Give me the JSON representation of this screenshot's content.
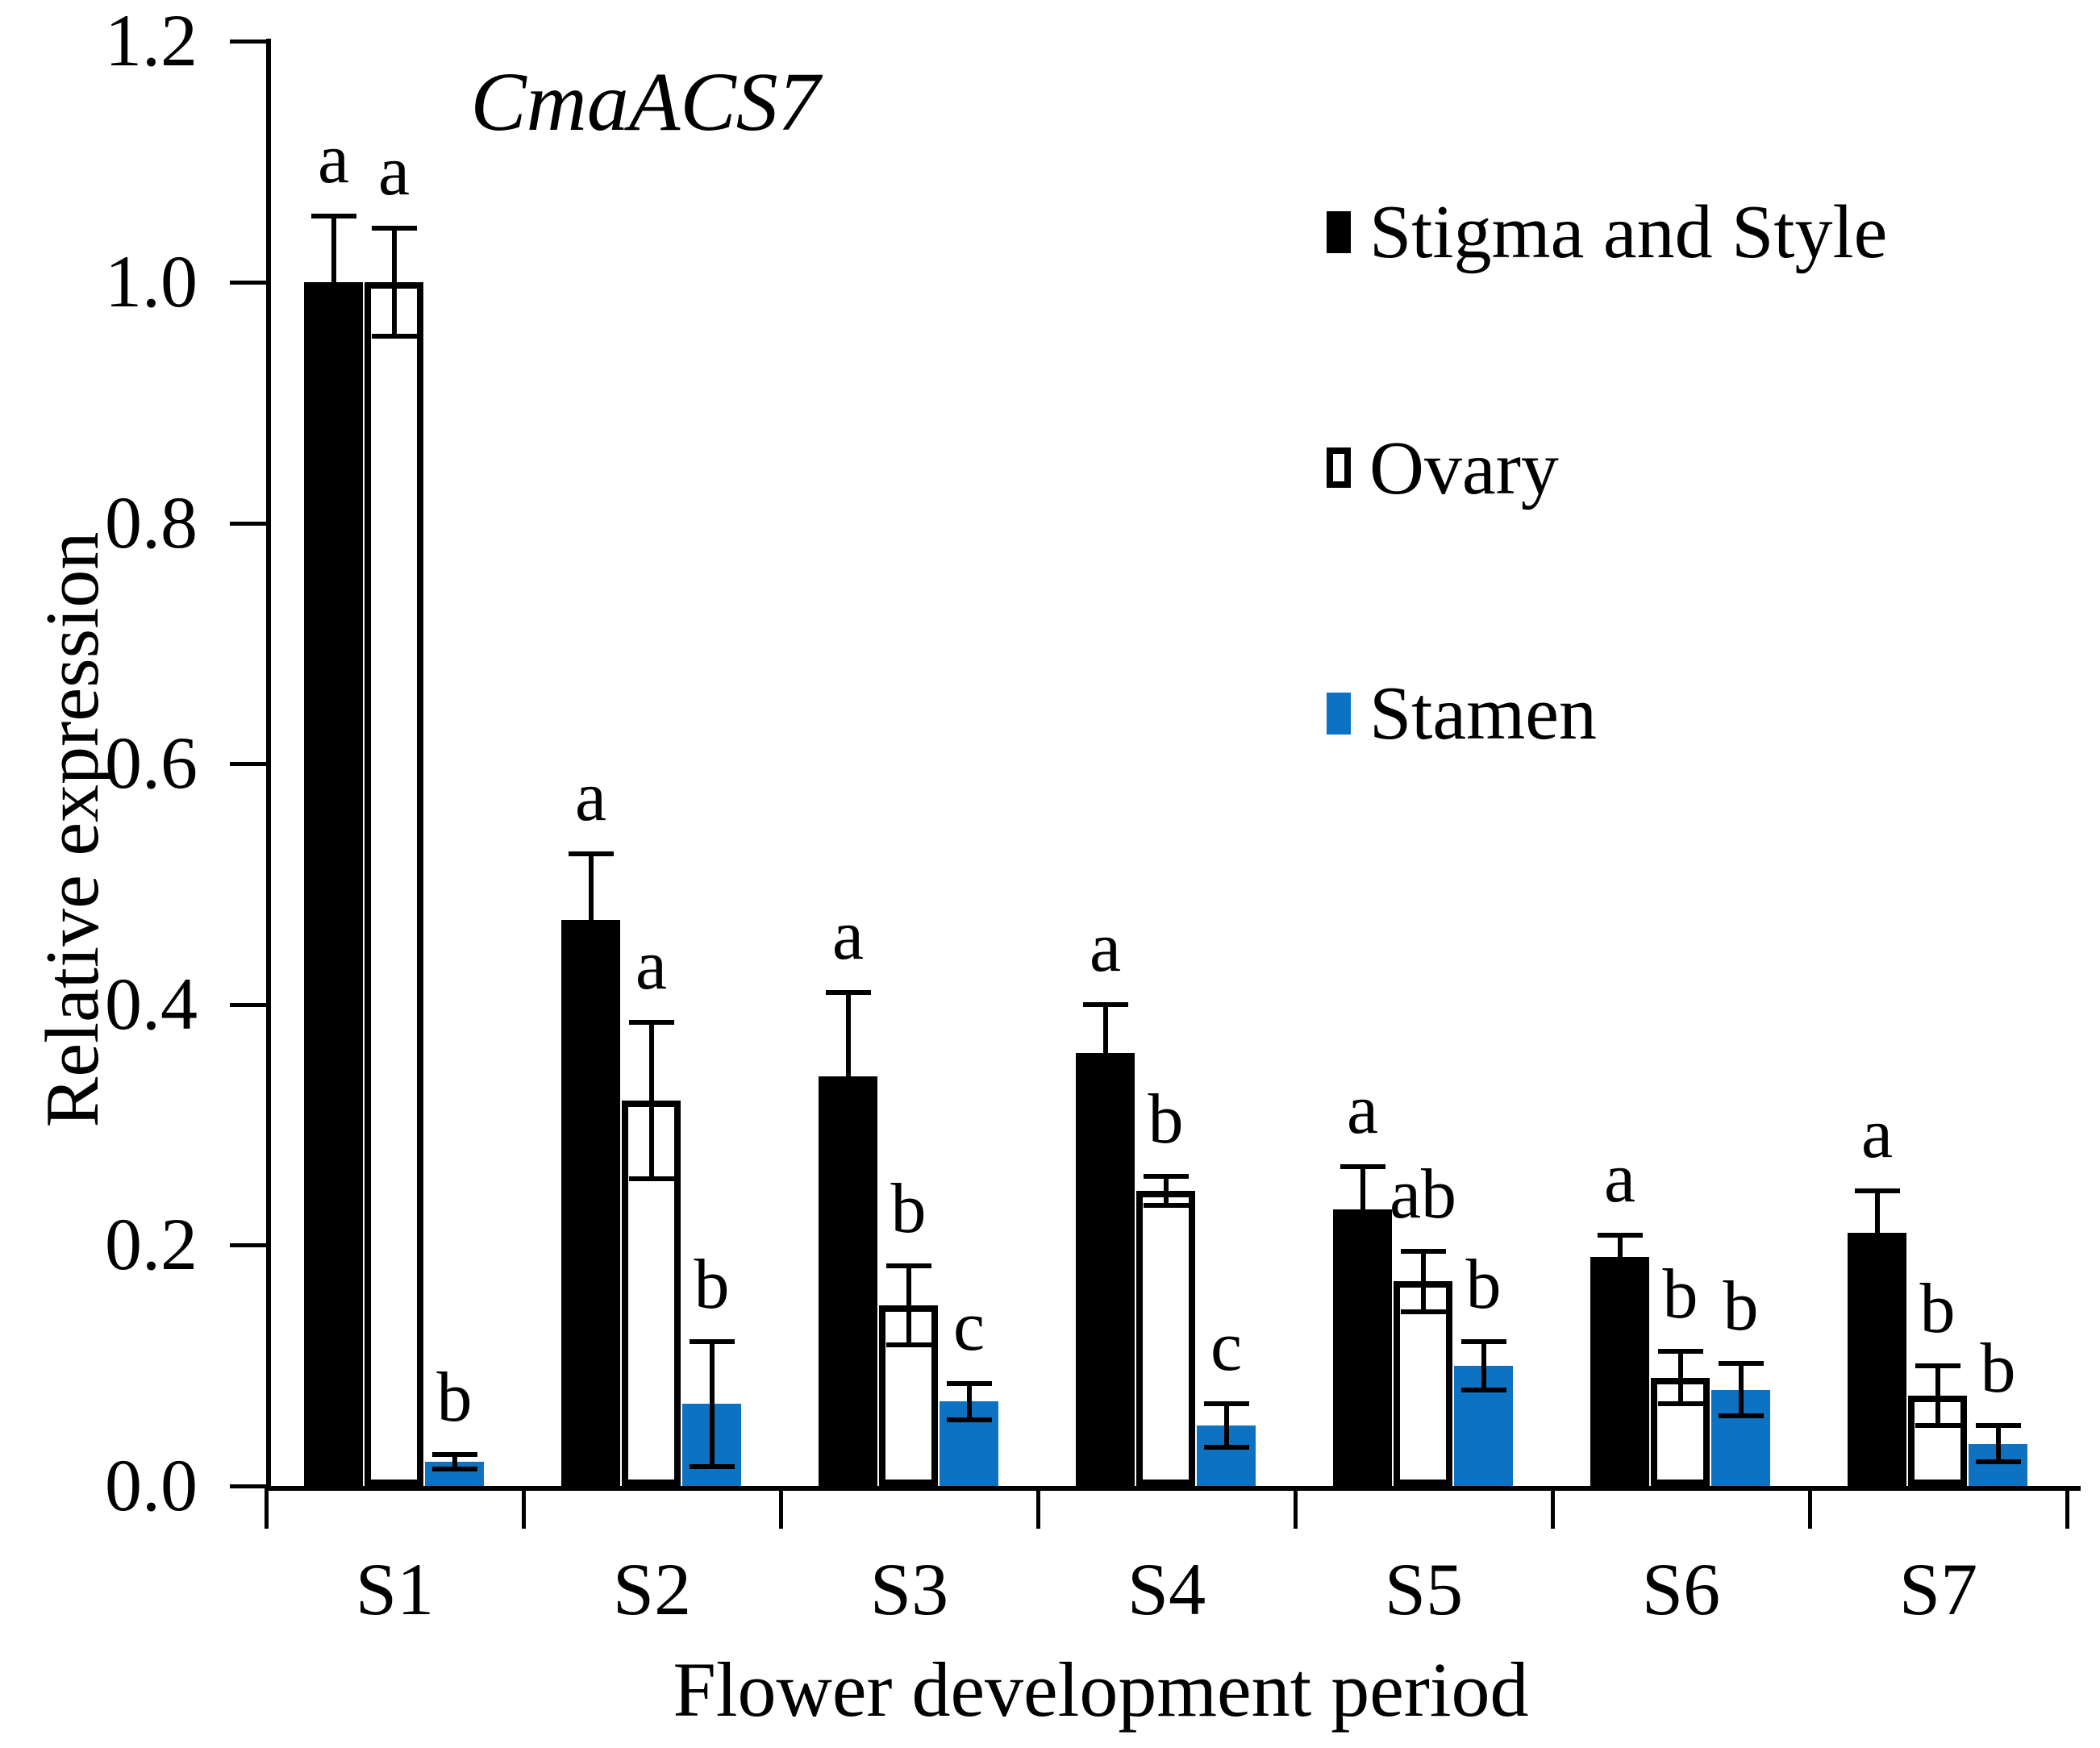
{
  "title": "CmaACS7",
  "axes": {
    "y_label": "Relative expression",
    "x_label": "Flower development period",
    "y_ticks": [
      "1.2",
      "1.0",
      "0.8",
      "0.6",
      "0.4",
      "0.2",
      "0.0"
    ],
    "categories": [
      "S1",
      "S2",
      "S3",
      "S4",
      "S5",
      "S6",
      "S7"
    ]
  },
  "legend": [
    {
      "label": "Stigma and Style",
      "swatch": "black-filled-square"
    },
    {
      "label": "Ovary",
      "swatch": "open-square"
    },
    {
      "label": "Stamen",
      "swatch": "blue-filled-square"
    }
  ],
  "colors": {
    "stigma_style": "#000000",
    "ovary_fill": "#ffffff",
    "ovary_border": "#000000",
    "stamen_blue": "#0d72c2",
    "axis": "#000000"
  },
  "chart_data": {
    "type": "bar",
    "title": "CmaACS7",
    "xlabel": "Flower development period",
    "ylabel": "Relative expression",
    "ylim": [
      0.0,
      1.2
    ],
    "y_tick_step": 0.2,
    "grid": false,
    "legend_position": "upper right",
    "error_bars": true,
    "categories": [
      "S1",
      "S2",
      "S3",
      "S4",
      "S5",
      "S6",
      "S7"
    ],
    "series": [
      {
        "name": "Stigma and Style",
        "color": "#000000",
        "values": [
          1.0,
          0.47,
          0.34,
          0.36,
          0.23,
          0.19,
          0.21
        ],
        "errors": [
          0.055,
          0.055,
          0.07,
          0.04,
          0.035,
          0.018,
          0.035
        ],
        "sig_letters": [
          "a",
          "a",
          "a",
          "a",
          "a",
          "a",
          "a"
        ]
      },
      {
        "name": "Ovary",
        "color": "#ffffff",
        "values": [
          1.0,
          0.32,
          0.15,
          0.245,
          0.17,
          0.09,
          0.075
        ],
        "errors": [
          0.045,
          0.065,
          0.033,
          0.012,
          0.025,
          0.022,
          0.025
        ],
        "sig_letters": [
          "a",
          "a",
          "b",
          "b",
          "ab",
          "b",
          "b"
        ]
      },
      {
        "name": "Stamen",
        "color": "#0d72c2",
        "values": [
          0.02,
          0.068,
          0.07,
          0.05,
          0.1,
          0.08,
          0.035
        ],
        "errors": [
          0.006,
          0.052,
          0.015,
          0.018,
          0.02,
          0.022,
          0.015
        ],
        "sig_letters": [
          "b",
          "b",
          "c",
          "c",
          "b",
          "b",
          "b"
        ]
      }
    ]
  }
}
